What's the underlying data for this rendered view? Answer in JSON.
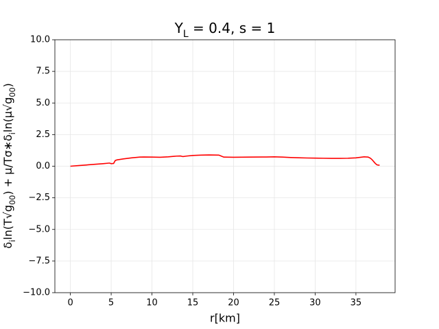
{
  "chart_data": {
    "type": "line",
    "title": "Y_L = 0.4, s = 1",
    "xlabel": "r[km]",
    "ylabel": "δ_iln(T√g_{00}) + μ/Tσ∗δ_iln(μ√g_{00})",
    "x": [
      0,
      1,
      2,
      3,
      4,
      4.8,
      5.0,
      5.3,
      5.5,
      5.7,
      6.5,
      7.5,
      8.5,
      9.0,
      10,
      11,
      12,
      13,
      13.5,
      13.8,
      14.2,
      15,
      16,
      17,
      18.2,
      18.5,
      18.8,
      20,
      22,
      24,
      25,
      26,
      27,
      28,
      29,
      30,
      31,
      32,
      33,
      34,
      35,
      35.5,
      36.0,
      36.5,
      36.8,
      37.0,
      37.2,
      37.4,
      37.6,
      37.9
    ],
    "series": [
      {
        "name": "line",
        "color": "#ff0000",
        "values": [
          0,
          0.05,
          0.1,
          0.15,
          0.2,
          0.25,
          0.2,
          0.22,
          0.45,
          0.5,
          0.58,
          0.66,
          0.72,
          0.73,
          0.72,
          0.71,
          0.74,
          0.8,
          0.81,
          0.76,
          0.8,
          0.85,
          0.88,
          0.89,
          0.88,
          0.8,
          0.72,
          0.71,
          0.72,
          0.73,
          0.74,
          0.72,
          0.69,
          0.67,
          0.65,
          0.64,
          0.63,
          0.62,
          0.62,
          0.63,
          0.66,
          0.7,
          0.74,
          0.72,
          0.62,
          0.5,
          0.35,
          0.2,
          0.1,
          0.08
        ]
      }
    ],
    "xlim": [
      -1.9,
      39.8
    ],
    "ylim": [
      -10,
      10
    ],
    "xticks": [
      0,
      5,
      10,
      15,
      20,
      25,
      30,
      35
    ],
    "yticks": [
      {
        "value": -10,
        "label": "−10.0"
      },
      {
        "value": -7.5,
        "label": "−7.5"
      },
      {
        "value": -5,
        "label": "−5.0"
      },
      {
        "value": -2.5,
        "label": "−2.5"
      },
      {
        "value": 0,
        "label": "0.0"
      },
      {
        "value": 2.5,
        "label": "2.5"
      },
      {
        "value": 5,
        "label": "5.0"
      },
      {
        "value": 7.5,
        "label": "7.5"
      },
      {
        "value": 10,
        "label": "10.0"
      }
    ],
    "grid": true
  }
}
